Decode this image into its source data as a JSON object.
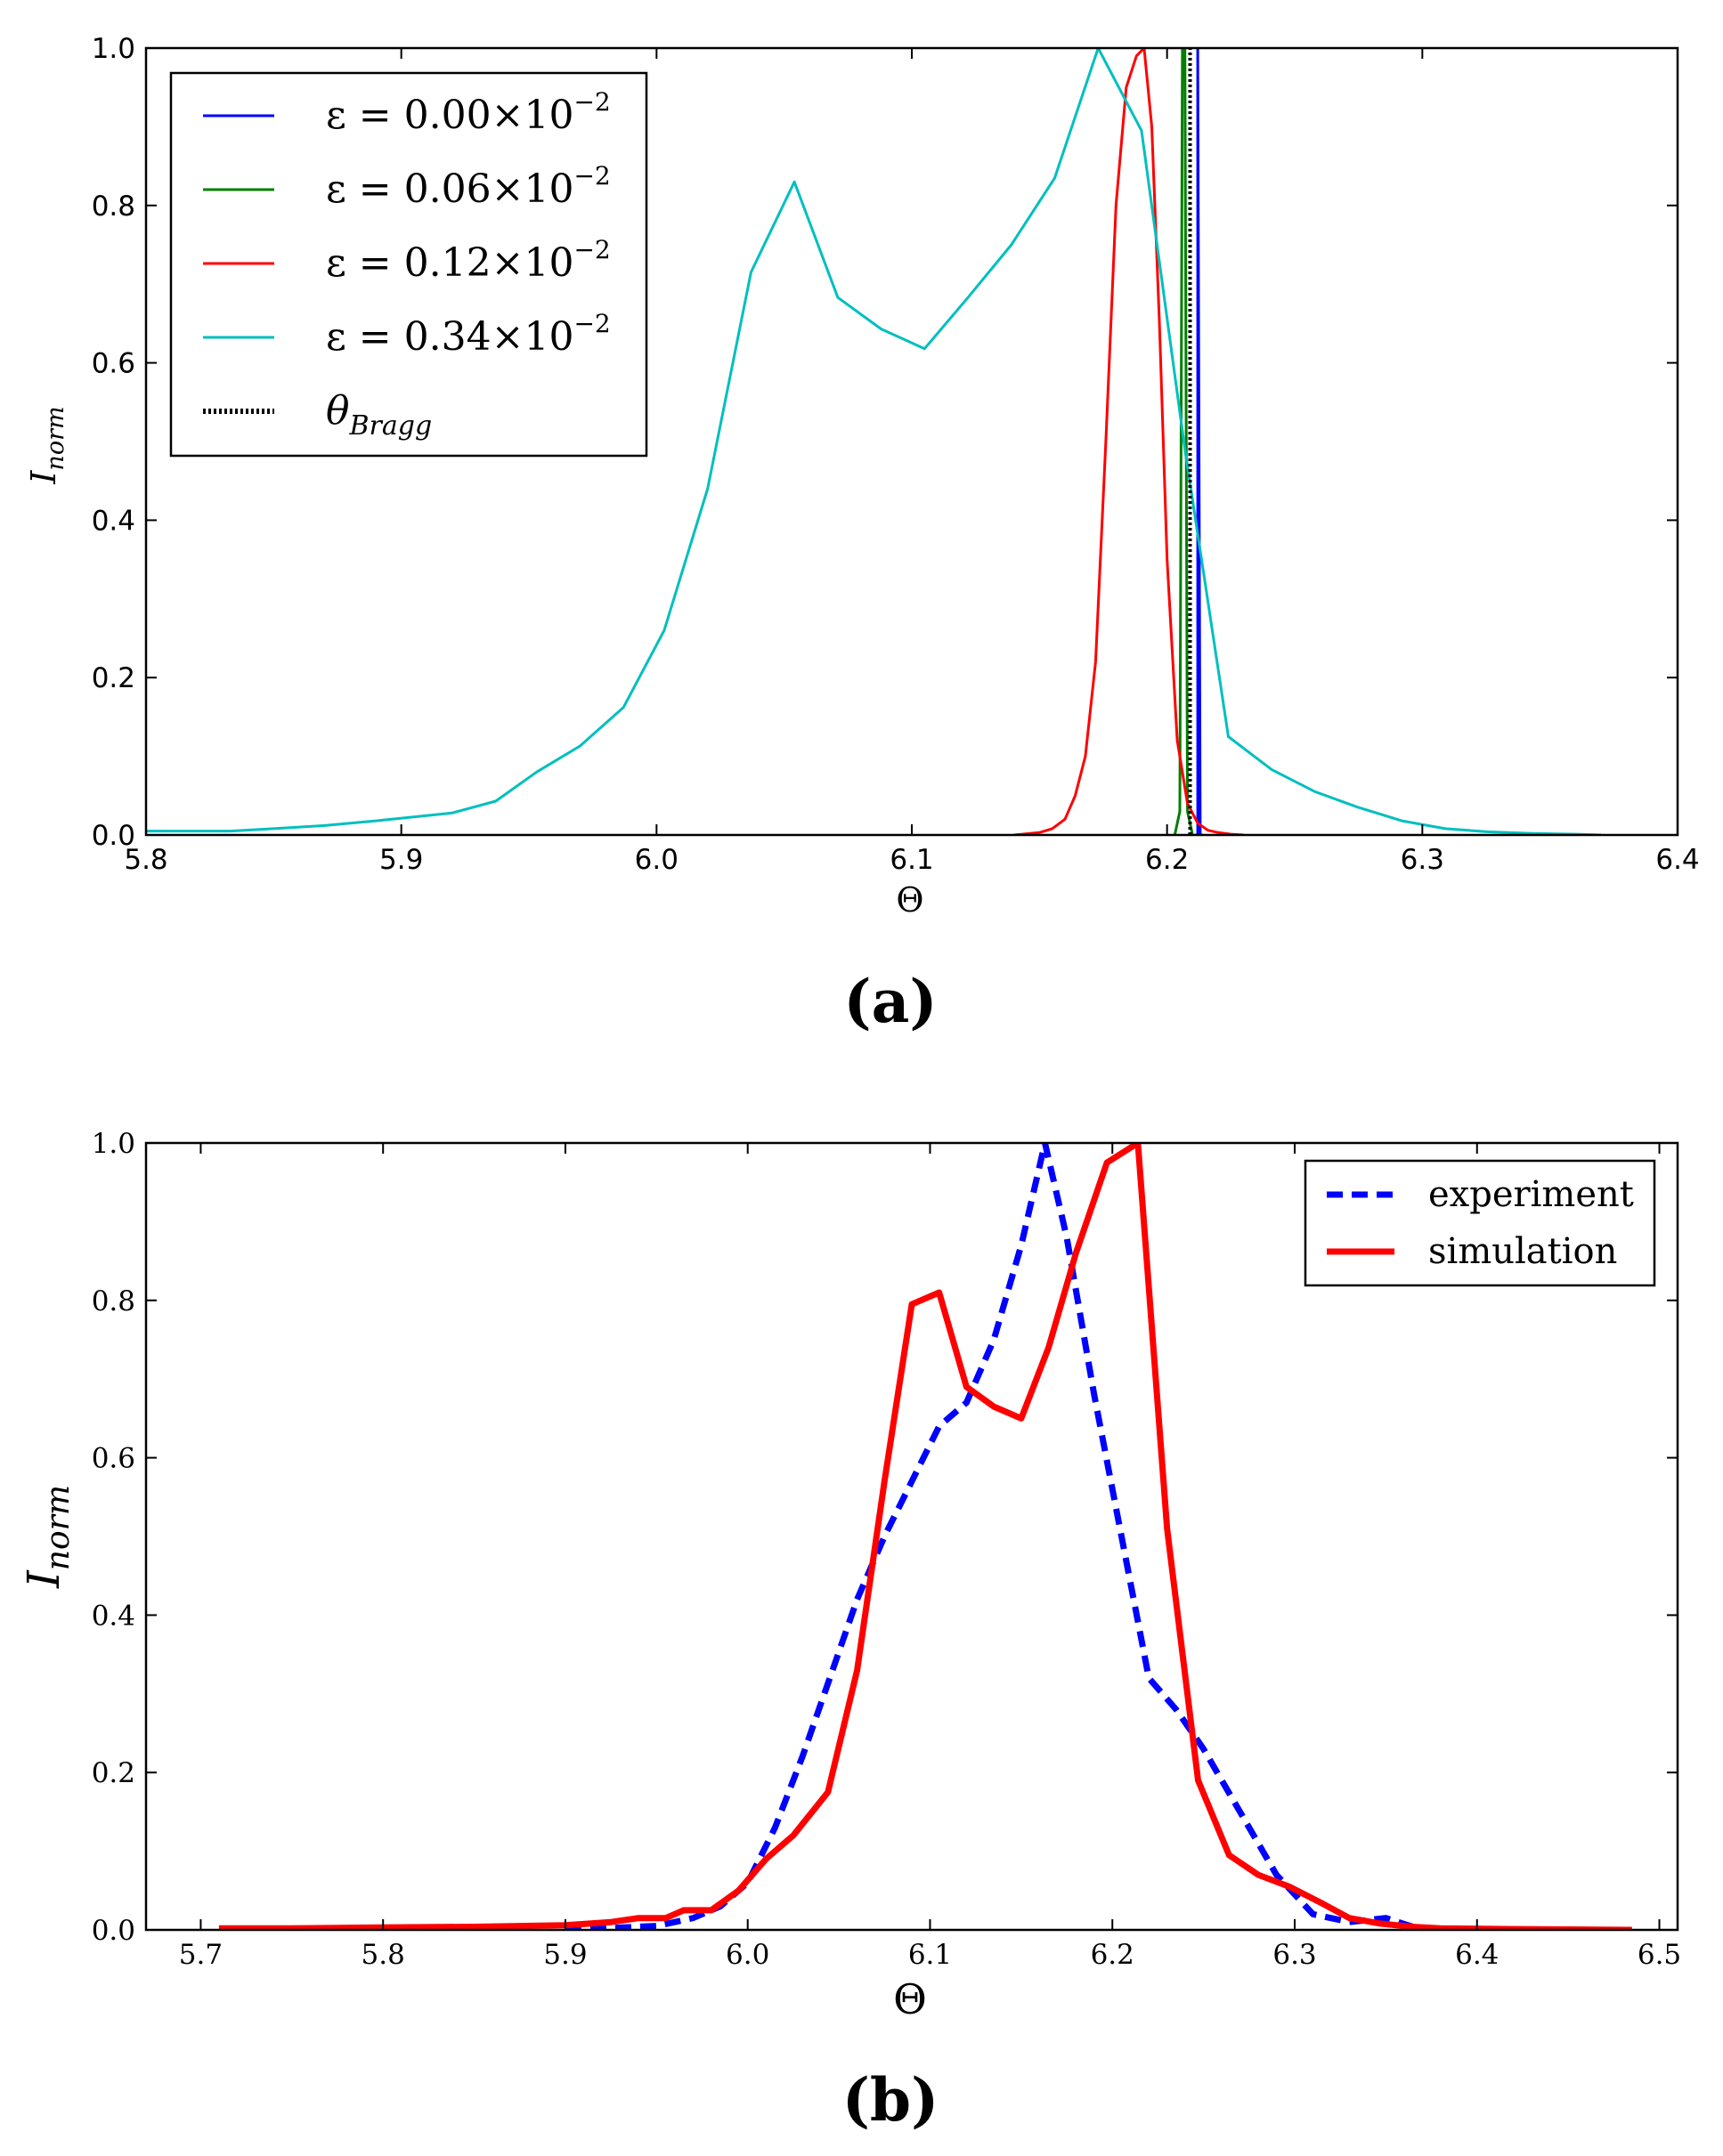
{
  "colors": {
    "blue": "#0000ff",
    "green": "#007f00",
    "red": "#ff0000",
    "cyan": "#00bfbf",
    "black": "#000000",
    "experiment": "#0000ff",
    "simulation": "#ff0000"
  },
  "chart_data": [
    {
      "type": "line",
      "panel_label": "(a)",
      "xlabel": "Θ",
      "ylabel": "I",
      "ylabel_sub": "norm",
      "xlim": [
        5.8,
        6.4
      ],
      "ylim": [
        0.0,
        1.0
      ],
      "xticks": [
        5.8,
        5.9,
        6.0,
        6.1,
        6.2,
        6.3,
        6.4
      ],
      "xtick_labels": [
        "5.8",
        "5.9",
        "6.0",
        "6.1",
        "6.2",
        "6.3",
        "6.4"
      ],
      "yticks": [
        0.0,
        0.2,
        0.4,
        0.6,
        0.8,
        1.0
      ],
      "ytick_labels": [
        "0.0",
        "0.2",
        "0.4",
        "0.6",
        "0.8",
        "1.0"
      ],
      "legend_position": "top-left",
      "series": [
        {
          "name": "ε = 0.00×10",
          "exponent": "−2",
          "color_key": "blue",
          "style": "solid",
          "x": [
            6.211,
            6.212,
            6.212,
            6.213,
            6.214
          ],
          "y": [
            0.0,
            0.0,
            1.0,
            0.0,
            0.0
          ]
        },
        {
          "name": "ε = 0.06×10",
          "exponent": "−2",
          "color_key": "green",
          "style": "solid",
          "x": [
            6.203,
            6.205,
            6.206,
            6.207,
            6.208,
            6.21
          ],
          "y": [
            0.0,
            0.03,
            1.0,
            1.0,
            0.03,
            0.0
          ]
        },
        {
          "name": "ε = 0.12×10",
          "exponent": "−2",
          "color_key": "red",
          "style": "solid",
          "x": [
            6.14,
            6.15,
            6.155,
            6.16,
            6.164,
            6.168,
            6.172,
            6.176,
            6.18,
            6.184,
            6.188,
            6.191,
            6.194,
            6.197,
            6.2,
            6.204,
            6.208,
            6.212,
            6.216,
            6.22,
            6.225,
            6.23
          ],
          "y": [
            0.0,
            0.003,
            0.008,
            0.02,
            0.05,
            0.1,
            0.22,
            0.5,
            0.8,
            0.95,
            0.99,
            1.0,
            0.9,
            0.65,
            0.35,
            0.12,
            0.04,
            0.015,
            0.006,
            0.003,
            0.001,
            0.0
          ]
        },
        {
          "name": "ε = 0.34×10",
          "exponent": "−2",
          "color_key": "cyan",
          "style": "solid",
          "x": [
            5.8,
            5.833,
            5.85,
            5.87,
            5.89,
            5.92,
            5.937,
            5.953,
            5.97,
            5.987,
            6.003,
            6.02,
            6.037,
            6.054,
            6.071,
            6.088,
            6.105,
            6.122,
            6.139,
            6.156,
            6.173,
            6.19,
            6.207,
            6.224,
            6.241,
            6.258,
            6.275,
            6.292,
            6.309,
            6.326,
            6.343,
            6.36,
            6.37
          ],
          "y": [
            0.005,
            0.005,
            0.008,
            0.012,
            0.018,
            0.028,
            0.043,
            0.08,
            0.113,
            0.162,
            0.26,
            0.44,
            0.715,
            0.83,
            0.683,
            0.643,
            0.618,
            0.683,
            0.75,
            0.835,
            1.0,
            0.895,
            0.49,
            0.125,
            0.083,
            0.055,
            0.035,
            0.018,
            0.008,
            0.004,
            0.002,
            0.001,
            0.0
          ]
        },
        {
          "name": "θ",
          "subscript": "Bragg",
          "color_key": "black",
          "style": "dotted",
          "x": [
            6.209,
            6.209
          ],
          "y": [
            0.0,
            1.0
          ]
        }
      ]
    },
    {
      "type": "line",
      "panel_label": "(b)",
      "xlabel": "Θ",
      "ylabel": "I",
      "ylabel_sub": "norm",
      "xlim": [
        5.67,
        6.51
      ],
      "ylim": [
        0.0,
        1.0
      ],
      "xticks": [
        5.7,
        5.8,
        5.9,
        6.0,
        6.1,
        6.2,
        6.3,
        6.4,
        6.5
      ],
      "xtick_labels": [
        "5.7",
        "5.8",
        "5.9",
        "6.0",
        "6.1",
        "6.2",
        "6.3",
        "6.4",
        "6.5"
      ],
      "yticks": [
        0.0,
        0.2,
        0.4,
        0.6,
        0.8,
        1.0
      ],
      "ytick_labels": [
        "0.0",
        "0.2",
        "0.4",
        "0.6",
        "0.8",
        "1.0"
      ],
      "legend_position": "top-right",
      "series": [
        {
          "name": "experiment",
          "color_key": "experiment",
          "style": "dashed",
          "x": [
            5.9,
            5.95,
            5.97,
            5.985,
            6.0,
            6.015,
            6.03,
            6.045,
            6.06,
            6.075,
            6.09,
            6.105,
            6.12,
            6.135,
            6.15,
            6.163,
            6.175,
            6.19,
            6.205,
            6.22,
            6.235,
            6.25,
            6.27,
            6.29,
            6.31,
            6.33,
            6.35,
            6.37
          ],
          "y": [
            0.0,
            0.005,
            0.015,
            0.03,
            0.06,
            0.13,
            0.22,
            0.32,
            0.42,
            0.5,
            0.57,
            0.64,
            0.67,
            0.75,
            0.87,
            1.0,
            0.88,
            0.68,
            0.5,
            0.32,
            0.28,
            0.23,
            0.15,
            0.07,
            0.02,
            0.01,
            0.015,
            0.0
          ]
        },
        {
          "name": "simulation",
          "color_key": "simulation",
          "style": "solid",
          "x": [
            5.71,
            5.75,
            5.8,
            5.85,
            5.9,
            5.925,
            5.94,
            5.955,
            5.965,
            5.98,
            5.995,
            6.01,
            6.025,
            6.044,
            6.06,
            6.075,
            6.09,
            6.105,
            6.12,
            6.135,
            6.15,
            6.165,
            6.18,
            6.197,
            6.214,
            6.23,
            6.247,
            6.264,
            6.28,
            6.297,
            6.314,
            6.33,
            6.347,
            6.364,
            6.38,
            6.42,
            6.485
          ],
          "y": [
            0.002,
            0.002,
            0.003,
            0.004,
            0.006,
            0.01,
            0.015,
            0.015,
            0.025,
            0.025,
            0.05,
            0.09,
            0.12,
            0.175,
            0.33,
            0.57,
            0.795,
            0.81,
            0.69,
            0.665,
            0.65,
            0.74,
            0.86,
            0.975,
            1.0,
            0.51,
            0.19,
            0.095,
            0.07,
            0.055,
            0.035,
            0.015,
            0.008,
            0.004,
            0.002,
            0.001,
            0.0
          ]
        }
      ]
    }
  ]
}
